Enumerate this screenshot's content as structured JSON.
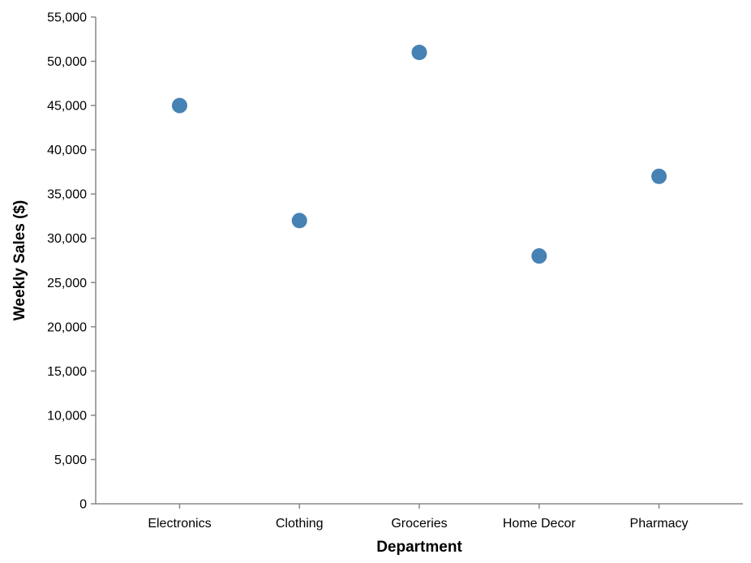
{
  "chart_data": {
    "type": "scatter",
    "categories": [
      "Electronics",
      "Clothing",
      "Groceries",
      "Home Decor",
      "Pharmacy"
    ],
    "values": [
      45000,
      32000,
      51000,
      28000,
      37000
    ],
    "xlabel": "Department",
    "ylabel": "Weekly Sales ($)",
    "ylim": [
      0,
      55000
    ],
    "yticks": [
      "0",
      "5,000",
      "10,000",
      "15,000",
      "20,000",
      "25,000",
      "30,000",
      "35,000",
      "40,000",
      "45,000",
      "50,000",
      "55,000"
    ],
    "grid": false,
    "point_color": "#4682b4"
  }
}
